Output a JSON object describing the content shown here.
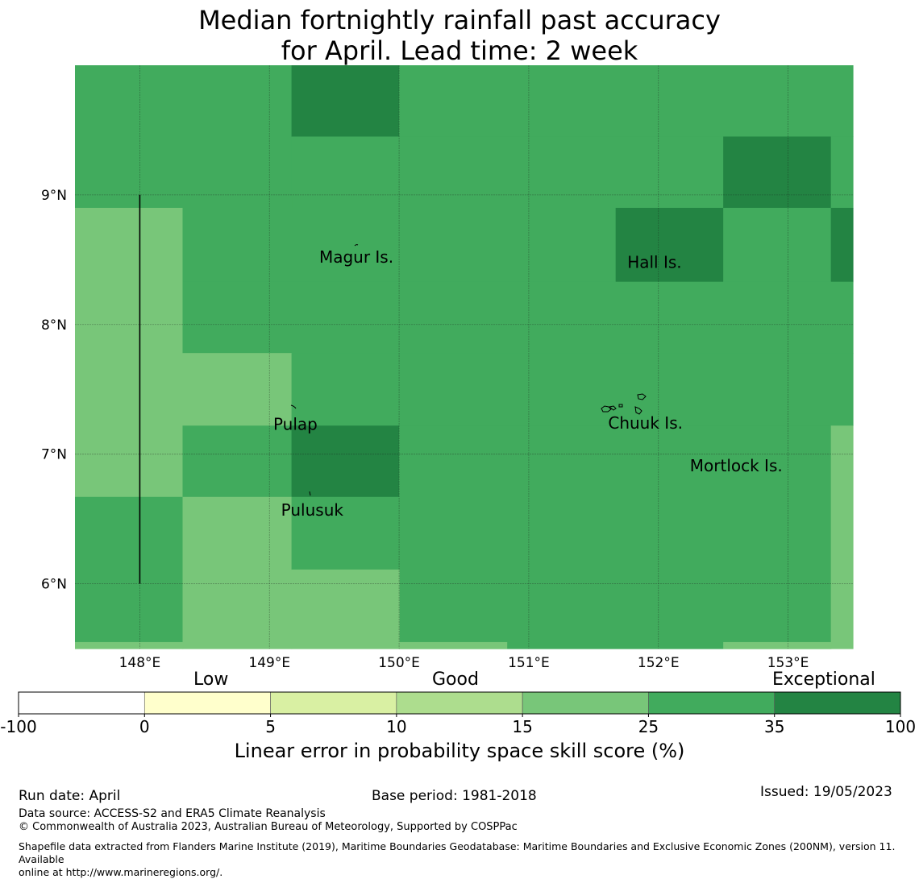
{
  "title": {
    "line1": "Median fortnightly rainfall past accuracy",
    "line2": "for April. Lead time: 2 week"
  },
  "map": {
    "lon_range": [
      147.5,
      153.5
    ],
    "lat_range": [
      5.5,
      10.0
    ],
    "lon_ticks": [
      {
        "value": 148,
        "label": "148°E"
      },
      {
        "value": 149,
        "label": "149°E"
      },
      {
        "value": 150,
        "label": "150°E"
      },
      {
        "value": 151,
        "label": "151°E"
      },
      {
        "value": 152,
        "label": "152°E"
      },
      {
        "value": 153,
        "label": "153°E"
      }
    ],
    "lat_ticks": [
      {
        "value": 9,
        "label": "9°N"
      },
      {
        "value": 8,
        "label": "8°N"
      },
      {
        "value": 7,
        "label": "7°N"
      },
      {
        "value": 6,
        "label": "6°N"
      }
    ],
    "colors": {
      "cat_15_25": "#78c679",
      "cat_25_35": "#41ab5d",
      "cat_35_100": "#238443"
    },
    "cells": [
      {
        "lon": [
          147.5,
          149.17
        ],
        "lat": [
          9.0,
          10.0
        ],
        "cat": "cat_25_35"
      },
      {
        "lon": [
          149.17,
          150.0
        ],
        "lat": [
          9.45,
          10.0
        ],
        "cat": "cat_35_100"
      },
      {
        "lon": [
          150.0,
          153.5
        ],
        "lat": [
          9.45,
          10.0
        ],
        "cat": "cat_25_35"
      },
      {
        "lon": [
          149.17,
          152.5
        ],
        "lat": [
          8.9,
          9.45
        ],
        "cat": "cat_25_35"
      },
      {
        "lon": [
          152.5,
          153.33
        ],
        "lat": [
          8.9,
          9.45
        ],
        "cat": "cat_35_100"
      },
      {
        "lon": [
          153.33,
          153.5
        ],
        "lat": [
          8.9,
          9.45
        ],
        "cat": "cat_25_35"
      },
      {
        "lon": [
          147.5,
          149.17
        ],
        "lat": [
          8.9,
          9.0
        ],
        "cat": "cat_25_35"
      },
      {
        "lon": [
          147.5,
          148.33
        ],
        "lat": [
          6.67,
          8.9
        ],
        "cat": "cat_15_25"
      },
      {
        "lon": [
          148.33,
          151.67
        ],
        "lat": [
          8.33,
          8.9
        ],
        "cat": "cat_25_35"
      },
      {
        "lon": [
          151.67,
          152.5
        ],
        "lat": [
          8.33,
          8.9
        ],
        "cat": "cat_35_100"
      },
      {
        "lon": [
          152.5,
          153.33
        ],
        "lat": [
          8.33,
          8.9
        ],
        "cat": "cat_25_35"
      },
      {
        "lon": [
          153.33,
          153.5
        ],
        "lat": [
          8.33,
          8.9
        ],
        "cat": "cat_35_100"
      },
      {
        "lon": [
          148.33,
          153.5
        ],
        "lat": [
          7.78,
          8.33
        ],
        "cat": "cat_25_35"
      },
      {
        "lon": [
          148.33,
          149.17
        ],
        "lat": [
          7.22,
          7.78
        ],
        "cat": "cat_15_25"
      },
      {
        "lon": [
          149.17,
          153.5
        ],
        "lat": [
          7.22,
          7.78
        ],
        "cat": "cat_25_35"
      },
      {
        "lon": [
          148.33,
          149.17
        ],
        "lat": [
          6.67,
          7.22
        ],
        "cat": "cat_25_35"
      },
      {
        "lon": [
          149.17,
          150.0
        ],
        "lat": [
          6.67,
          7.22
        ],
        "cat": "cat_35_100"
      },
      {
        "lon": [
          150.0,
          153.33
        ],
        "lat": [
          5.5,
          7.22
        ],
        "cat": "cat_25_35"
      },
      {
        "lon": [
          153.33,
          153.5
        ],
        "lat": [
          5.5,
          7.22
        ],
        "cat": "cat_15_25"
      },
      {
        "lon": [
          147.5,
          148.33
        ],
        "lat": [
          5.55,
          6.67
        ],
        "cat": "cat_25_35"
      },
      {
        "lon": [
          148.33,
          149.17
        ],
        "lat": [
          5.5,
          6.67
        ],
        "cat": "cat_15_25"
      },
      {
        "lon": [
          149.17,
          150.0
        ],
        "lat": [
          6.11,
          6.67
        ],
        "cat": "cat_25_35"
      },
      {
        "lon": [
          149.17,
          150.0
        ],
        "lat": [
          5.5,
          6.11
        ],
        "cat": "cat_15_25"
      },
      {
        "lon": [
          147.5,
          148.33
        ],
        "lat": [
          5.5,
          5.55
        ],
        "cat": "cat_15_25"
      },
      {
        "lon": [
          150.0,
          150.83
        ],
        "lat": [
          5.5,
          5.55
        ],
        "cat": "cat_15_25"
      },
      {
        "lon": [
          152.5,
          153.33
        ],
        "lat": [
          5.5,
          5.55
        ],
        "cat": "cat_15_25"
      }
    ],
    "boundary_line": {
      "lon": 148.0,
      "lat": [
        6.0,
        9.0
      ]
    },
    "islands": [
      {
        "name": "Magur Is.",
        "lon": 149.67,
        "lat": 8.52
      },
      {
        "name": "Hall Is.",
        "lon": 151.97,
        "lat": 8.48
      },
      {
        "name": "Pulap",
        "lon": 149.2,
        "lat": 7.23
      },
      {
        "name": "Chuuk Is.",
        "lon": 151.9,
        "lat": 7.24
      },
      {
        "name": "Mortlock Is.",
        "lon": 152.6,
        "lat": 6.91
      },
      {
        "name": "Pulusuk",
        "lon": 149.33,
        "lat": 6.57
      }
    ]
  },
  "colorbar": {
    "bounds": [
      "-100",
      "0",
      "5",
      "10",
      "15",
      "25",
      "35",
      "100"
    ],
    "colors": [
      "#ffffff",
      "#ffffcc",
      "#d9f0a3",
      "#addd8e",
      "#78c679",
      "#41ab5d",
      "#238443"
    ],
    "category_labels": {
      "low": "Low",
      "good": "Good",
      "exceptional": "Exceptional"
    },
    "title": "Linear error in probability space skill score (%)"
  },
  "footer": {
    "run_date": "Run date: April",
    "base_period": "Base period: 1981-2018",
    "issued": "Issued: 19/05/2023",
    "data_source": "Data source: ACCESS-S2 and ERA5 Climate Reanalysis",
    "copyright": "© Commonwealth of Australia 2023, Australian Bureau of Meteorology, Supported by COSPPac",
    "shapefile_line1": "Shapefile data extracted from Flanders Marine Institute (2019), Maritime Boundaries Geodatabase: Maritime Boundaries and Exclusive Economic Zones (200NM), version 11. Available",
    "shapefile_line2": "online at http://www.marineregions.org/."
  }
}
